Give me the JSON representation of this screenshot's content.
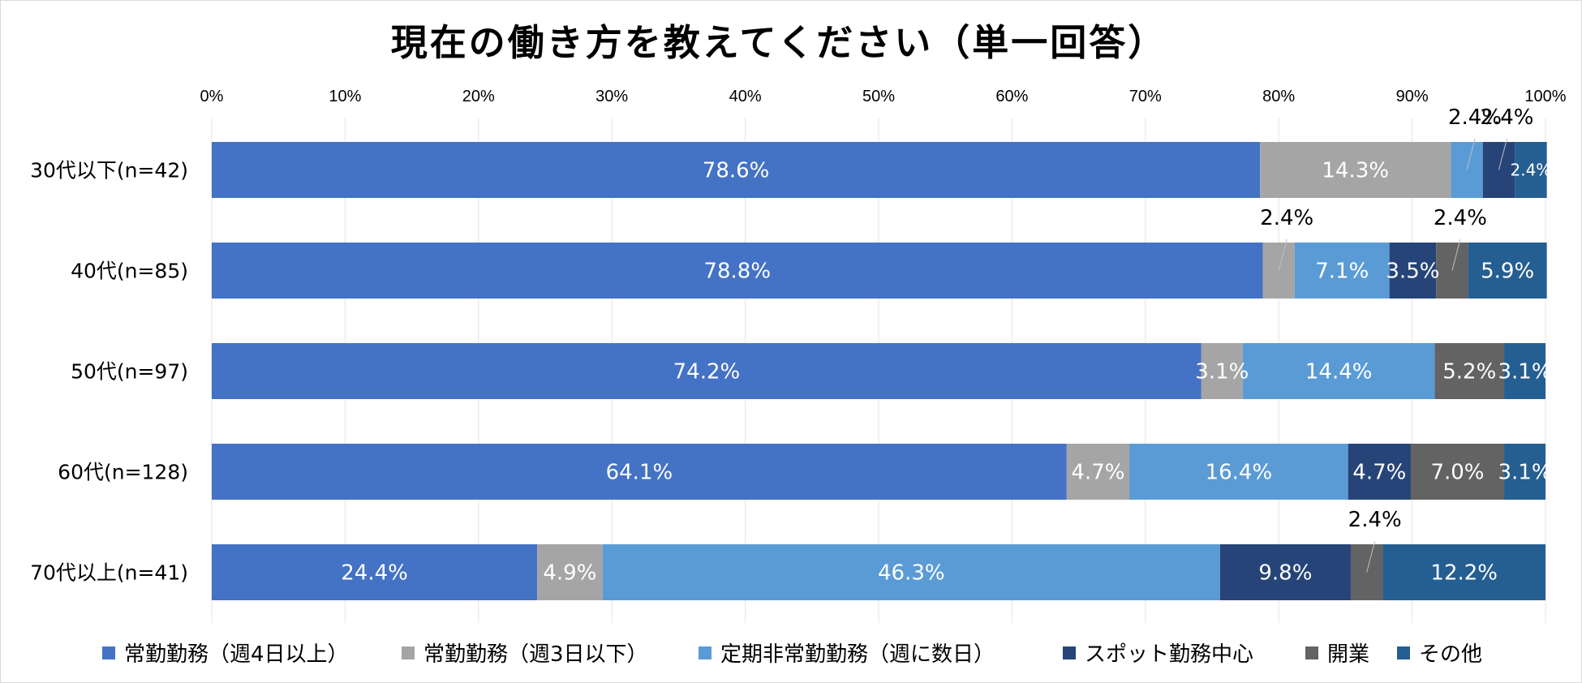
{
  "chart_data": {
    "type": "bar",
    "orientation": "horizontal",
    "stacked": true,
    "title": "現在の働き方を教えてください（単一回答）",
    "xlim": [
      0,
      100
    ],
    "x_ticks": [
      "0%",
      "10%",
      "20%",
      "30%",
      "40%",
      "50%",
      "60%",
      "70%",
      "80%",
      "90%",
      "100%"
    ],
    "grid": true,
    "legend_position": "bottom",
    "categories": [
      "30代以下(n=42)",
      "40代(n=85)",
      "50代(n=97)",
      "60代(n=128)",
      "70代以上(n=41)"
    ],
    "series": [
      {
        "name": "常勤勤務（週4日以上）",
        "color": "#4472C4",
        "values": [
          78.6,
          78.8,
          74.2,
          64.1,
          24.4
        ],
        "labels": [
          "78.6%",
          "78.8%",
          "74.2%",
          "64.1%",
          "24.4%"
        ]
      },
      {
        "name": "常勤勤務（週3日以下）",
        "color": "#A5A5A5",
        "values": [
          14.3,
          2.4,
          3.1,
          4.7,
          4.9
        ],
        "labels": [
          "14.3%",
          "2.4%",
          "3.1%",
          "4.7%",
          "4.9%"
        ]
      },
      {
        "name": "定期非常勤勤務（週に数日）",
        "color": "#5B9BD5",
        "values": [
          2.4,
          7.1,
          14.4,
          16.4,
          46.3
        ],
        "labels": [
          "2.4%",
          "7.1%",
          "14.4%",
          "16.4%",
          "46.3%"
        ]
      },
      {
        "name": "スポット勤務中心",
        "color": "#264478",
        "values": [
          2.4,
          3.5,
          0,
          4.7,
          9.8
        ],
        "labels": [
          "2.4%",
          "3.5%",
          "",
          "4.7%",
          "9.8%"
        ]
      },
      {
        "name": "開業",
        "color": "#636363",
        "values": [
          0,
          2.4,
          5.2,
          7.0,
          2.4
        ],
        "labels": [
          "",
          "2.4%",
          "5.2%",
          "7.0%",
          "2.4%"
        ]
      },
      {
        "name": "その他",
        "color": "#255E91",
        "values": [
          2.4,
          5.9,
          3.1,
          3.1,
          12.2
        ],
        "labels": [
          "2.4%",
          "5.9%",
          "3.1%",
          "3.1%",
          "12.2%"
        ]
      }
    ]
  }
}
